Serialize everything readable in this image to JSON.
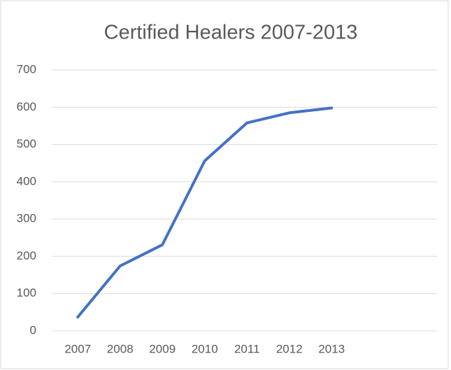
{
  "chart_data": {
    "type": "line",
    "title": "Certified Healers 2007-2013",
    "categories": [
      "2007",
      "2008",
      "2009",
      "2010",
      "2011",
      "2012",
      "2013"
    ],
    "series": [
      {
        "name": "Certified Healers",
        "color": "#4472c4",
        "values": [
          37,
          174,
          231,
          456,
          558,
          585,
          598
        ]
      }
    ],
    "ylim": [
      0,
      700
    ],
    "yticks": [
      0,
      100,
      200,
      300,
      400,
      500,
      600,
      700
    ],
    "grid": true
  }
}
